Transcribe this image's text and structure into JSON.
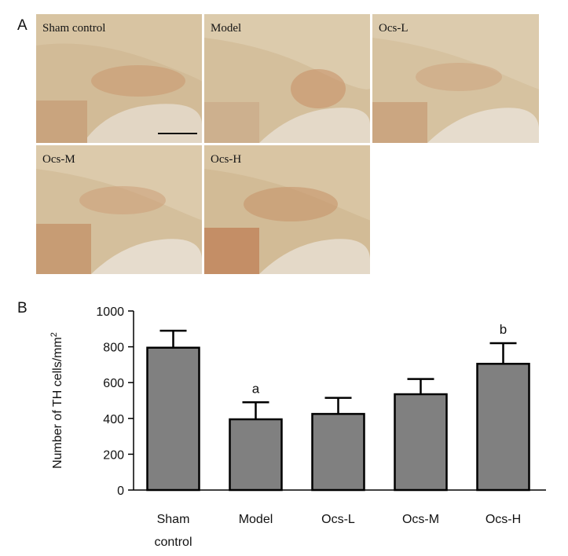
{
  "panel_a": {
    "letter": "A",
    "panels": [
      {
        "label": "Sham control"
      },
      {
        "label": "Model"
      },
      {
        "label": "Ocs-L"
      },
      {
        "label": "Ocs-M"
      },
      {
        "label": "Ocs-H"
      }
    ]
  },
  "panel_b": {
    "letter": "B"
  },
  "chart_data": {
    "type": "bar",
    "categories": [
      [
        "Sham",
        "control"
      ],
      [
        "Model"
      ],
      [
        "Ocs-L"
      ],
      [
        "Ocs-M"
      ],
      [
        "Ocs-H"
      ]
    ],
    "values": [
      795,
      395,
      425,
      535,
      705
    ],
    "errors": [
      95,
      95,
      90,
      85,
      115
    ],
    "annotations": [
      "",
      "a",
      "",
      "",
      "b"
    ],
    "ylabel_main": "Number of TH cells/mm",
    "ylabel_sup": "2",
    "ylim": [
      0,
      1000
    ],
    "yticks": [
      0,
      200,
      400,
      600,
      800,
      1000
    ],
    "bar_color": "#808080",
    "edge_color": "#000000"
  }
}
